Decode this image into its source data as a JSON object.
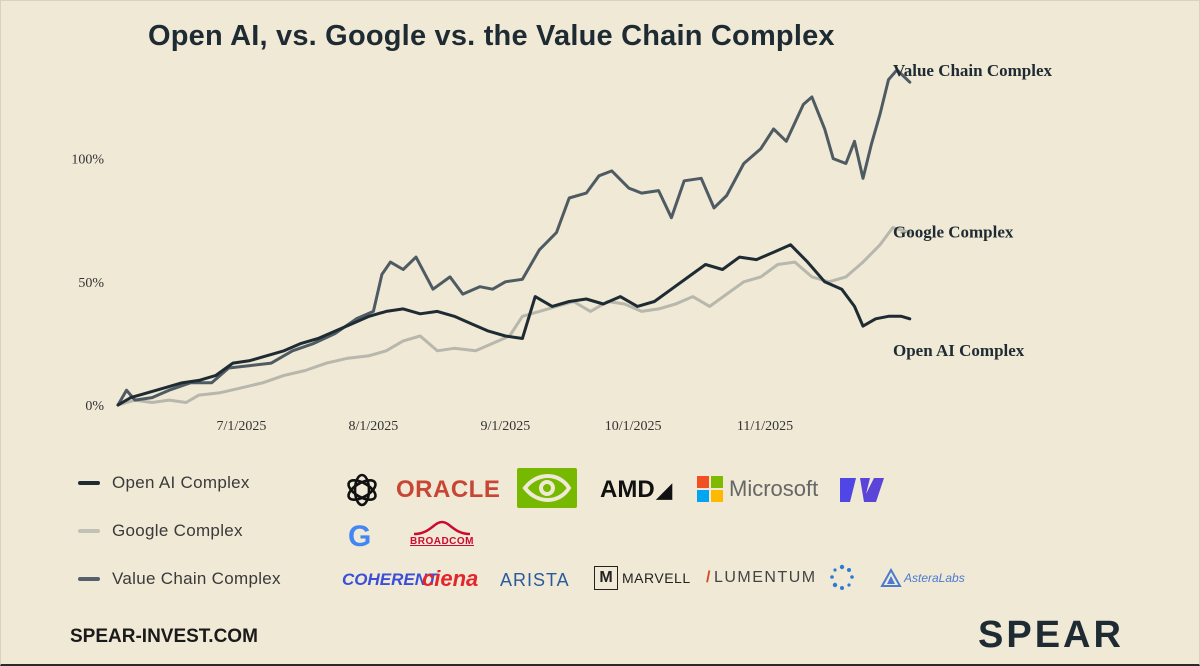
{
  "title": "Open AI, vs. Google vs. the Value Chain Complex",
  "chart_data": {
    "type": "line",
    "ylim": [
      0,
      140
    ],
    "xlim": [
      "2025-06-02",
      "2025-11-28"
    ],
    "yticks": [
      {
        "value": 0,
        "label": "0%"
      },
      {
        "value": 50,
        "label": "50%"
      },
      {
        "value": 100,
        "label": "100%"
      }
    ],
    "xticks": [
      {
        "date": "2025-07-01",
        "label": "7/1/2025"
      },
      {
        "date": "2025-08-01",
        "label": "8/1/2025"
      },
      {
        "date": "2025-09-01",
        "label": "9/1/2025"
      },
      {
        "date": "2025-10-01",
        "label": "10/1/2025"
      },
      {
        "date": "2025-11-01",
        "label": "11/1/2025"
      }
    ],
    "series": [
      {
        "name": "Value Chain Complex",
        "color": "#4f5b62",
        "points": [
          [
            "2025-06-02",
            0
          ],
          [
            "2025-06-04",
            6
          ],
          [
            "2025-06-06",
            2
          ],
          [
            "2025-06-10",
            3
          ],
          [
            "2025-06-14",
            6
          ],
          [
            "2025-06-19",
            9
          ],
          [
            "2025-06-24",
            9
          ],
          [
            "2025-06-28",
            15
          ],
          [
            "2025-07-03",
            16
          ],
          [
            "2025-07-08",
            17
          ],
          [
            "2025-07-13",
            22
          ],
          [
            "2025-07-18",
            25
          ],
          [
            "2025-07-23",
            29
          ],
          [
            "2025-07-28",
            35
          ],
          [
            "2025-08-01",
            38
          ],
          [
            "2025-08-03",
            53
          ],
          [
            "2025-08-05",
            58
          ],
          [
            "2025-08-08",
            55
          ],
          [
            "2025-08-11",
            60
          ],
          [
            "2025-08-15",
            47
          ],
          [
            "2025-08-19",
            52
          ],
          [
            "2025-08-22",
            45
          ],
          [
            "2025-08-26",
            48
          ],
          [
            "2025-08-29",
            47
          ],
          [
            "2025-09-01",
            50
          ],
          [
            "2025-09-05",
            51
          ],
          [
            "2025-09-09",
            63
          ],
          [
            "2025-09-13",
            70
          ],
          [
            "2025-09-16",
            84
          ],
          [
            "2025-09-20",
            86
          ],
          [
            "2025-09-23",
            93
          ],
          [
            "2025-09-26",
            95
          ],
          [
            "2025-09-30",
            88
          ],
          [
            "2025-10-03",
            86
          ],
          [
            "2025-10-07",
            87
          ],
          [
            "2025-10-10",
            76
          ],
          [
            "2025-10-13",
            91
          ],
          [
            "2025-10-17",
            92
          ],
          [
            "2025-10-20",
            80
          ],
          [
            "2025-10-23",
            85
          ],
          [
            "2025-10-27",
            98
          ],
          [
            "2025-10-31",
            104
          ],
          [
            "2025-11-03",
            112
          ],
          [
            "2025-11-06",
            107
          ],
          [
            "2025-11-10",
            122
          ],
          [
            "2025-11-12",
            125
          ],
          [
            "2025-11-15",
            112
          ],
          [
            "2025-11-17",
            100
          ],
          [
            "2025-11-20",
            98
          ],
          [
            "2025-11-22",
            107
          ],
          [
            "2025-11-24",
            92
          ],
          [
            "2025-11-26",
            106
          ],
          [
            "2025-11-28",
            118
          ],
          [
            "2025-11-30",
            132
          ],
          [
            "2025-12-02",
            136
          ],
          [
            "2025-12-05",
            131
          ]
        ]
      },
      {
        "name": "Google Complex",
        "color": "#b8b7ac",
        "points": [
          [
            "2025-06-02",
            0
          ],
          [
            "2025-06-06",
            2
          ],
          [
            "2025-06-10",
            1
          ],
          [
            "2025-06-14",
            2
          ],
          [
            "2025-06-18",
            1
          ],
          [
            "2025-06-21",
            4
          ],
          [
            "2025-06-26",
            5
          ],
          [
            "2025-07-01",
            7
          ],
          [
            "2025-07-06",
            9
          ],
          [
            "2025-07-11",
            12
          ],
          [
            "2025-07-16",
            14
          ],
          [
            "2025-07-21",
            17
          ],
          [
            "2025-07-26",
            19
          ],
          [
            "2025-07-31",
            20
          ],
          [
            "2025-08-04",
            22
          ],
          [
            "2025-08-08",
            26
          ],
          [
            "2025-08-12",
            28
          ],
          [
            "2025-08-16",
            22
          ],
          [
            "2025-08-20",
            23
          ],
          [
            "2025-08-25",
            22
          ],
          [
            "2025-08-29",
            25
          ],
          [
            "2025-09-02",
            28
          ],
          [
            "2025-09-05",
            36
          ],
          [
            "2025-09-09",
            38
          ],
          [
            "2025-09-13",
            40
          ],
          [
            "2025-09-17",
            42
          ],
          [
            "2025-09-21",
            38
          ],
          [
            "2025-09-25",
            42
          ],
          [
            "2025-09-29",
            41
          ],
          [
            "2025-10-03",
            38
          ],
          [
            "2025-10-07",
            39
          ],
          [
            "2025-10-11",
            41
          ],
          [
            "2025-10-15",
            44
          ],
          [
            "2025-10-19",
            40
          ],
          [
            "2025-10-23",
            45
          ],
          [
            "2025-10-27",
            50
          ],
          [
            "2025-10-31",
            52
          ],
          [
            "2025-11-04",
            57
          ],
          [
            "2025-11-08",
            58
          ],
          [
            "2025-11-12",
            52
          ],
          [
            "2025-11-16",
            50
          ],
          [
            "2025-11-20",
            52
          ],
          [
            "2025-11-24",
            58
          ],
          [
            "2025-11-28",
            65
          ],
          [
            "2025-12-01",
            72
          ],
          [
            "2025-12-05",
            70
          ]
        ]
      },
      {
        "name": "Open AI Complex",
        "color": "#1f2b33",
        "points": [
          [
            "2025-06-02",
            0
          ],
          [
            "2025-06-05",
            3
          ],
          [
            "2025-06-09",
            5
          ],
          [
            "2025-06-13",
            7
          ],
          [
            "2025-06-17",
            9
          ],
          [
            "2025-06-21",
            10
          ],
          [
            "2025-06-25",
            12
          ],
          [
            "2025-06-29",
            17
          ],
          [
            "2025-07-03",
            18
          ],
          [
            "2025-07-07",
            20
          ],
          [
            "2025-07-11",
            22
          ],
          [
            "2025-07-15",
            25
          ],
          [
            "2025-07-19",
            27
          ],
          [
            "2025-07-23",
            30
          ],
          [
            "2025-07-27",
            33
          ],
          [
            "2025-07-31",
            36
          ],
          [
            "2025-08-04",
            38
          ],
          [
            "2025-08-08",
            39
          ],
          [
            "2025-08-12",
            37
          ],
          [
            "2025-08-16",
            38
          ],
          [
            "2025-08-20",
            36
          ],
          [
            "2025-08-24",
            33
          ],
          [
            "2025-08-28",
            30
          ],
          [
            "2025-09-01",
            28
          ],
          [
            "2025-09-05",
            27
          ],
          [
            "2025-09-08",
            44
          ],
          [
            "2025-09-12",
            40
          ],
          [
            "2025-09-16",
            42
          ],
          [
            "2025-09-20",
            43
          ],
          [
            "2025-09-24",
            41
          ],
          [
            "2025-09-28",
            44
          ],
          [
            "2025-10-02",
            40
          ],
          [
            "2025-10-06",
            42
          ],
          [
            "2025-10-10",
            47
          ],
          [
            "2025-10-14",
            52
          ],
          [
            "2025-10-18",
            57
          ],
          [
            "2025-10-22",
            55
          ],
          [
            "2025-10-26",
            60
          ],
          [
            "2025-10-30",
            59
          ],
          [
            "2025-11-03",
            62
          ],
          [
            "2025-11-07",
            65
          ],
          [
            "2025-11-11",
            58
          ],
          [
            "2025-11-15",
            50
          ],
          [
            "2025-11-19",
            47
          ],
          [
            "2025-11-22",
            40
          ],
          [
            "2025-11-24",
            32
          ],
          [
            "2025-11-27",
            35
          ],
          [
            "2025-11-30",
            36
          ],
          [
            "2025-12-03",
            36
          ],
          [
            "2025-12-05",
            35
          ]
        ]
      }
    ],
    "end_labels": [
      {
        "series": "Value Chain Complex",
        "text": "Value Chain Complex"
      },
      {
        "series": "Google Complex",
        "text": "Google Complex"
      },
      {
        "series": "Open AI Complex",
        "text": "Open AI Complex"
      }
    ]
  },
  "legend": [
    {
      "label": "Open AI Complex",
      "color": "#1f2b33"
    },
    {
      "label": "Google Complex",
      "color": "#c2c1b5"
    },
    {
      "label": "Value Chain Complex",
      "color": "#55606a"
    }
  ],
  "logos": {
    "openai_row": {
      "openai": "openai-logo",
      "oracle": "ORACLE",
      "nvidia": "nvidia-logo",
      "amd": "AMD",
      "microsoft": "Microsoft",
      "coreweave": "coreweave-logo"
    },
    "google_row": {
      "google": "G",
      "broadcom": "BROADCOM"
    },
    "value_row": {
      "coherent": "COHERENT",
      "ciena": "ciena",
      "arista": "ARISTA",
      "marvell": "MARVELL",
      "lumentum": "LUMENTUM",
      "credo": "credo-logo",
      "astera": "AsteraLabs"
    }
  },
  "colors": {
    "background": "#efe9d6",
    "oracle": "#c74634",
    "nvidia": "#76b900",
    "coherent": "#3a4fd9",
    "ciena": "#e5252c",
    "arista": "#2a5a9c",
    "astera": "#4a7bd0"
  },
  "footer": {
    "website": "SPEAR-INVEST.COM",
    "brand": "SPEAR"
  }
}
